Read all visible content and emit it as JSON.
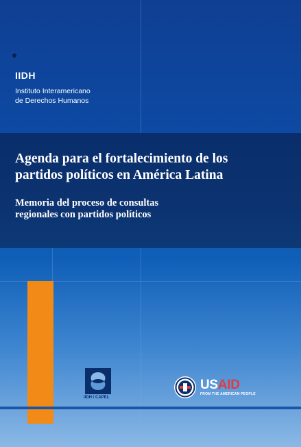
{
  "publisher": {
    "abbreviation": "IIDH",
    "name_line1": "Instituto Interamericano",
    "name_line2": "de Derechos Humanos"
  },
  "title": {
    "line1": "Agenda para el fortalecimiento de los",
    "line2": "partidos políticos en América Latina"
  },
  "subtitle": {
    "line1": "Memoria del proceso de consultas",
    "line2": "regionales con partidos políticos"
  },
  "logos": {
    "capel_label": "IIDH / CAPEL",
    "usaid_us": "US",
    "usaid_aid": "AID",
    "usaid_tagline": "FROM THE AMERICAN PEOPLE"
  },
  "colors": {
    "accent_orange": "#f28a17",
    "navy": "#0a2e6c",
    "usaid_red": "#e23a3f"
  }
}
